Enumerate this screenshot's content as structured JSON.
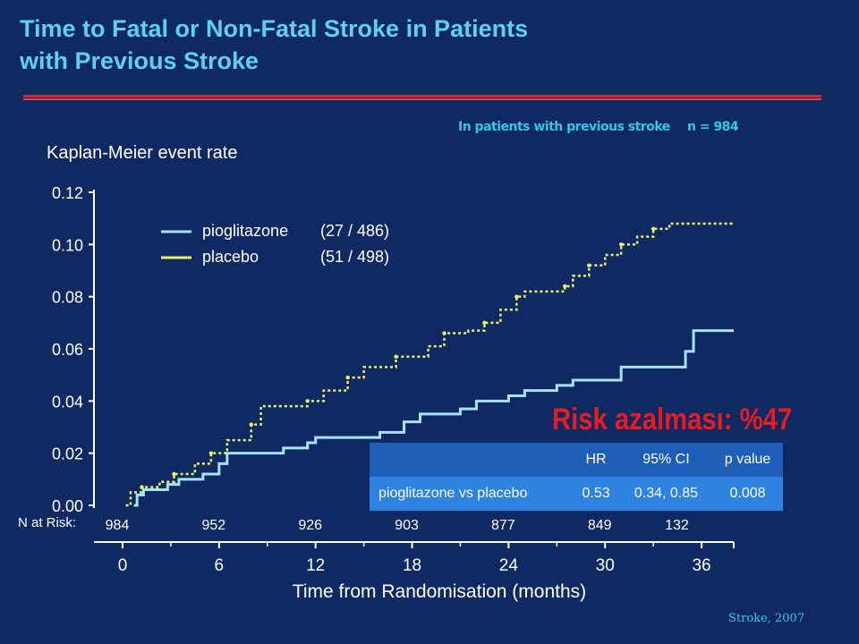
{
  "title_line1": "Time to Fatal or Non-Fatal Stroke in Patients",
  "title_line2": "with Previous Stroke",
  "subset_note": "In patients with previous stroke",
  "subset_n": "n = 984",
  "risk_label": "Risk azalması: %47",
  "source": "Stroke, 2007",
  "n_at_risk_label": "N at Risk:",
  "colors": {
    "background": "#0f2a63",
    "title": "#5fd0f2",
    "pioglitazone": "#a6e3f7",
    "placebo": "#f2ef6a",
    "risk": "#e51c23",
    "divider": "#d8262a"
  },
  "chart_data": {
    "type": "line",
    "ylabel": "Kaplan-Meier event rate",
    "xlabel": "Time from Randomisation (months)",
    "xlim": [
      0,
      38
    ],
    "ylim": [
      0,
      0.12
    ],
    "x_ticks": [
      "0",
      "6",
      "12",
      "18",
      "24",
      "30",
      "36"
    ],
    "y_ticks": [
      "0.00",
      "0.02",
      "0.04",
      "0.06",
      "0.08",
      "0.10",
      "0.12"
    ],
    "grid": false,
    "legend": [
      {
        "name": "pioglitazone",
        "events": "(27 / 486)"
      },
      {
        "name": "placebo",
        "events": "(51 / 498)"
      }
    ],
    "n_at_risk": [
      "984",
      "952",
      "926",
      "903",
      "877",
      "849",
      "132"
    ],
    "series": [
      {
        "name": "pioglitazone",
        "style": "step",
        "x": [
          0.7,
          0.9,
          1.3,
          2.8,
          3.5,
          5.0,
          6.0,
          6.5,
          10.0,
          11.5,
          12.0,
          16.0,
          17.5,
          18.5,
          21.0,
          22.0,
          24.0,
          25.0,
          27.0,
          28.0,
          31.0,
          35.0,
          35.5,
          38.0
        ],
        "y": [
          0.0,
          0.004,
          0.006,
          0.008,
          0.01,
          0.012,
          0.016,
          0.02,
          0.022,
          0.024,
          0.026,
          0.028,
          0.032,
          0.035,
          0.037,
          0.04,
          0.042,
          0.044,
          0.046,
          0.048,
          0.053,
          0.059,
          0.067,
          0.067
        ]
      },
      {
        "name": "placebo",
        "style": "step",
        "x": [
          0.2,
          0.5,
          1.2,
          2.3,
          3.2,
          4.5,
          5.5,
          6.5,
          8.0,
          8.6,
          11.5,
          12.5,
          14.0,
          15.0,
          17.0,
          19.0,
          20.0,
          21.5,
          22.5,
          23.5,
          24.5,
          25.0,
          27.5,
          28.0,
          29.0,
          30.0,
          31.0,
          32.0,
          33.0,
          34.0,
          38.0
        ],
        "y": [
          0.0,
          0.005,
          0.007,
          0.009,
          0.012,
          0.016,
          0.02,
          0.025,
          0.031,
          0.038,
          0.04,
          0.044,
          0.049,
          0.053,
          0.057,
          0.061,
          0.066,
          0.067,
          0.07,
          0.075,
          0.08,
          0.082,
          0.084,
          0.088,
          0.092,
          0.096,
          0.1,
          0.103,
          0.106,
          0.108,
          0.108
        ]
      }
    ]
  },
  "hr_table": {
    "headers": [
      "",
      "HR",
      "95% CI",
      "p value"
    ],
    "rows": [
      [
        "pioglitazone vs placebo",
        "0.53",
        "0.34, 0.85",
        "0.008"
      ]
    ]
  }
}
